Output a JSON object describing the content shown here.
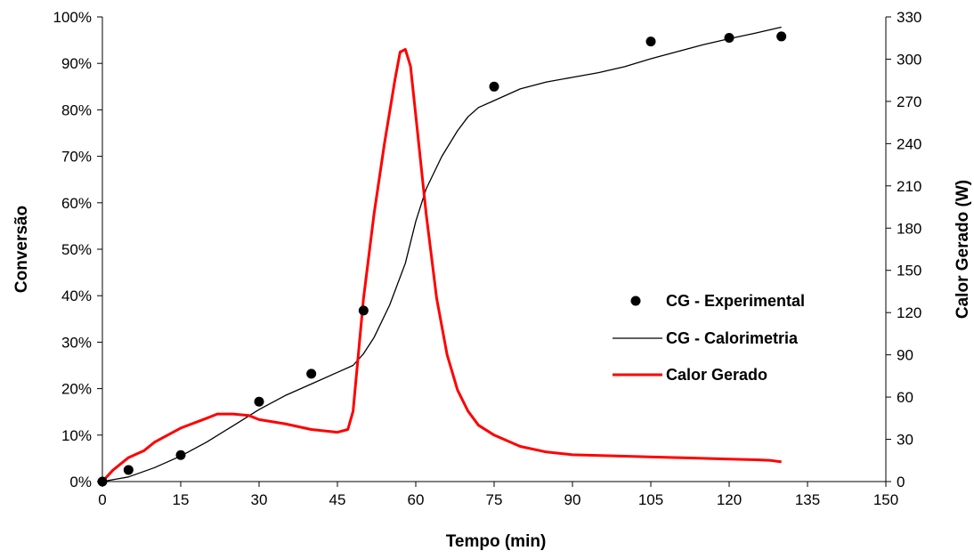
{
  "chart_data": {
    "type": "line",
    "title": "",
    "xlabel": "Tempo (min)",
    "ylabel_left": "Conversão",
    "ylabel_right": "Calor Gerado (W)",
    "xlim": [
      0,
      150
    ],
    "ylim_left": [
      0,
      1
    ],
    "ylim_right": [
      0,
      330
    ],
    "x_ticks": [
      0,
      15,
      30,
      45,
      60,
      75,
      90,
      105,
      120,
      135,
      150
    ],
    "x_tick_labels": [
      "0",
      "15",
      "30",
      "45",
      "60",
      "75",
      "90",
      "105",
      "120",
      "135",
      "150"
    ],
    "y_left_ticks": [
      0,
      0.1,
      0.2,
      0.3,
      0.4,
      0.5,
      0.6,
      0.7,
      0.8,
      0.9,
      1.0
    ],
    "y_left_tick_labels": [
      "0%",
      "10%",
      "20%",
      "30%",
      "40%",
      "50%",
      "60%",
      "70%",
      "80%",
      "90%",
      "100%"
    ],
    "y_right_ticks": [
      0,
      30,
      60,
      90,
      120,
      150,
      180,
      210,
      240,
      270,
      300,
      330
    ],
    "y_right_tick_labels": [
      "0",
      "30",
      "60",
      "90",
      "120",
      "150",
      "180",
      "210",
      "240",
      "270",
      "300",
      "330"
    ],
    "grid": false,
    "legend_position": "center-right",
    "series": [
      {
        "name": "CG - Experimental",
        "kind": "scatter",
        "axis": "left",
        "color": "#000000",
        "x": [
          0,
          5,
          15,
          30,
          40,
          50,
          75,
          105,
          120,
          130
        ],
        "y": [
          0.0,
          0.025,
          0.057,
          0.172,
          0.232,
          0.368,
          0.85,
          0.947,
          0.955,
          0.958
        ]
      },
      {
        "name": "CG - Calorimetria",
        "kind": "line",
        "axis": "left",
        "color": "#000000",
        "x": [
          0,
          5,
          10,
          15,
          20,
          25,
          30,
          35,
          40,
          45,
          48,
          50,
          52,
          55,
          58,
          60,
          62,
          65,
          68,
          70,
          72,
          75,
          80,
          85,
          90,
          95,
          100,
          105,
          110,
          115,
          120,
          125,
          130
        ],
        "y": [
          0.0,
          0.01,
          0.03,
          0.055,
          0.085,
          0.12,
          0.155,
          0.185,
          0.21,
          0.235,
          0.25,
          0.275,
          0.31,
          0.38,
          0.47,
          0.56,
          0.63,
          0.7,
          0.755,
          0.785,
          0.805,
          0.82,
          0.845,
          0.86,
          0.87,
          0.88,
          0.893,
          0.91,
          0.925,
          0.94,
          0.953,
          0.965,
          0.978
        ]
      },
      {
        "name": "Calor Gerado",
        "kind": "line",
        "axis": "right",
        "color": "#ff0000",
        "x": [
          0,
          2,
          5,
          8,
          10,
          15,
          20,
          22,
          25,
          28,
          30,
          35,
          40,
          45,
          47,
          48,
          50,
          52,
          54,
          56,
          57,
          58,
          59,
          60,
          62,
          64,
          66,
          68,
          70,
          72,
          75,
          80,
          85,
          90,
          100,
          110,
          120,
          125,
          128,
          130
        ],
        "y": [
          0,
          8,
          17,
          22,
          28,
          38,
          45,
          48,
          48,
          47,
          44,
          41,
          37,
          35,
          37,
          50,
          130,
          190,
          240,
          285,
          305,
          307,
          295,
          260,
          190,
          130,
          90,
          65,
          50,
          40,
          33,
          25,
          21,
          19,
          18,
          17,
          16,
          15.5,
          15,
          14
        ]
      }
    ]
  }
}
